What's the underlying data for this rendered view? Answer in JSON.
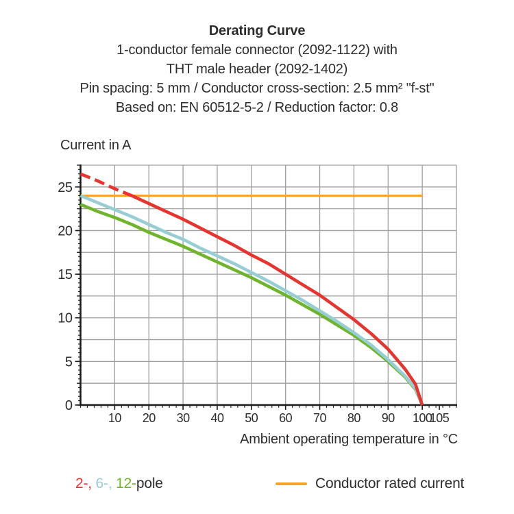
{
  "page": {
    "background": "#ffffff",
    "text_color": "#2d2d2c"
  },
  "title_block": {
    "title": "Derating Curve",
    "subtitle_lines": [
      "1-conductor female connector (2092-1122) with",
      "THT male header (2092-1402)",
      "Pin spacing: 5 mm / Conductor cross-section: 2.5 mm² \"f-st\"",
      "Based on: EN 60512-5-2 / Reduction factor: 0.8"
    ]
  },
  "chart_data": {
    "type": "line",
    "title": "Derating Curve",
    "y_axis_title": "Current in A",
    "x_axis_title": "Ambient operating temperature in °C",
    "grid": true,
    "grid_color": "#9e9e9e",
    "axis_color": "#1c1c1b",
    "x_axis": {
      "min": 0,
      "max": 110,
      "grid_step": 10,
      "major_tick_step": 10,
      "minor_tick_step": 2,
      "tick_labels": [
        10,
        20,
        30,
        40,
        50,
        60,
        70,
        80,
        90,
        100,
        105
      ]
    },
    "y_axis": {
      "min": 0,
      "max": 27.5,
      "grid_step": 2.5,
      "major_tick_step": 5,
      "mid_tick_step": 2.5,
      "minor_tick_step": 0.5,
      "tick_labels": [
        0,
        5,
        10,
        15,
        20,
        25
      ]
    },
    "series": [
      {
        "name": "2-pole",
        "color": "#e5352e",
        "line_width": 4.6,
        "dashed_until_x": 15,
        "points": [
          [
            0,
            26.5
          ],
          [
            5,
            25.7
          ],
          [
            10,
            24.8
          ],
          [
            15,
            24.0
          ],
          [
            20,
            23.1
          ],
          [
            25,
            22.2
          ],
          [
            30,
            21.3
          ],
          [
            35,
            20.3
          ],
          [
            40,
            19.3
          ],
          [
            45,
            18.3
          ],
          [
            50,
            17.2
          ],
          [
            55,
            16.2
          ],
          [
            60,
            15.0
          ],
          [
            65,
            13.8
          ],
          [
            70,
            12.6
          ],
          [
            75,
            11.2
          ],
          [
            80,
            9.8
          ],
          [
            85,
            8.2
          ],
          [
            90,
            6.4
          ],
          [
            95,
            4.1
          ],
          [
            98,
            2.4
          ],
          [
            100,
            0
          ]
        ]
      },
      {
        "name": "6-pole",
        "color": "#96ced4",
        "line_width": 4.6,
        "points": [
          [
            0,
            24.0
          ],
          [
            5,
            23.2
          ],
          [
            10,
            22.4
          ],
          [
            15,
            21.6
          ],
          [
            20,
            20.7
          ],
          [
            25,
            19.8
          ],
          [
            30,
            19.0
          ],
          [
            35,
            18.0
          ],
          [
            40,
            17.1
          ],
          [
            45,
            16.2
          ],
          [
            50,
            15.2
          ],
          [
            55,
            14.2
          ],
          [
            60,
            13.1
          ],
          [
            65,
            12.0
          ],
          [
            70,
            10.8
          ],
          [
            75,
            9.6
          ],
          [
            80,
            8.3
          ],
          [
            85,
            6.9
          ],
          [
            90,
            5.2
          ],
          [
            95,
            3.3
          ],
          [
            98,
            1.9
          ],
          [
            100,
            0
          ]
        ]
      },
      {
        "name": "12-pole",
        "color": "#6eb52c",
        "line_width": 4.6,
        "points": [
          [
            0,
            23.0
          ],
          [
            5,
            22.2
          ],
          [
            10,
            21.5
          ],
          [
            15,
            20.7
          ],
          [
            20,
            19.8
          ],
          [
            25,
            19.0
          ],
          [
            30,
            18.2
          ],
          [
            35,
            17.3
          ],
          [
            40,
            16.4
          ],
          [
            45,
            15.5
          ],
          [
            50,
            14.6
          ],
          [
            55,
            13.6
          ],
          [
            60,
            12.6
          ],
          [
            65,
            11.5
          ],
          [
            70,
            10.4
          ],
          [
            75,
            9.2
          ],
          [
            80,
            8.0
          ],
          [
            85,
            6.6
          ],
          [
            90,
            5.0
          ],
          [
            95,
            3.2
          ],
          [
            98,
            1.8
          ],
          [
            100,
            0
          ]
        ]
      },
      {
        "name": "Conductor rated current",
        "color": "#f7a228",
        "line_width": 3,
        "points": [
          [
            0,
            24
          ],
          [
            100,
            24
          ]
        ]
      }
    ]
  },
  "legend": {
    "pole_segments": [
      {
        "text": "2-,",
        "color": "#e5352e"
      },
      {
        "text": " 6-,",
        "color": "#96ced4"
      },
      {
        "text": " 12-",
        "color": "#6eb52c"
      },
      {
        "text": "pole",
        "color": "#2d2d2c"
      }
    ],
    "rated_current": {
      "swatch_color": "#f7a228",
      "label": "Conductor rated current"
    }
  }
}
